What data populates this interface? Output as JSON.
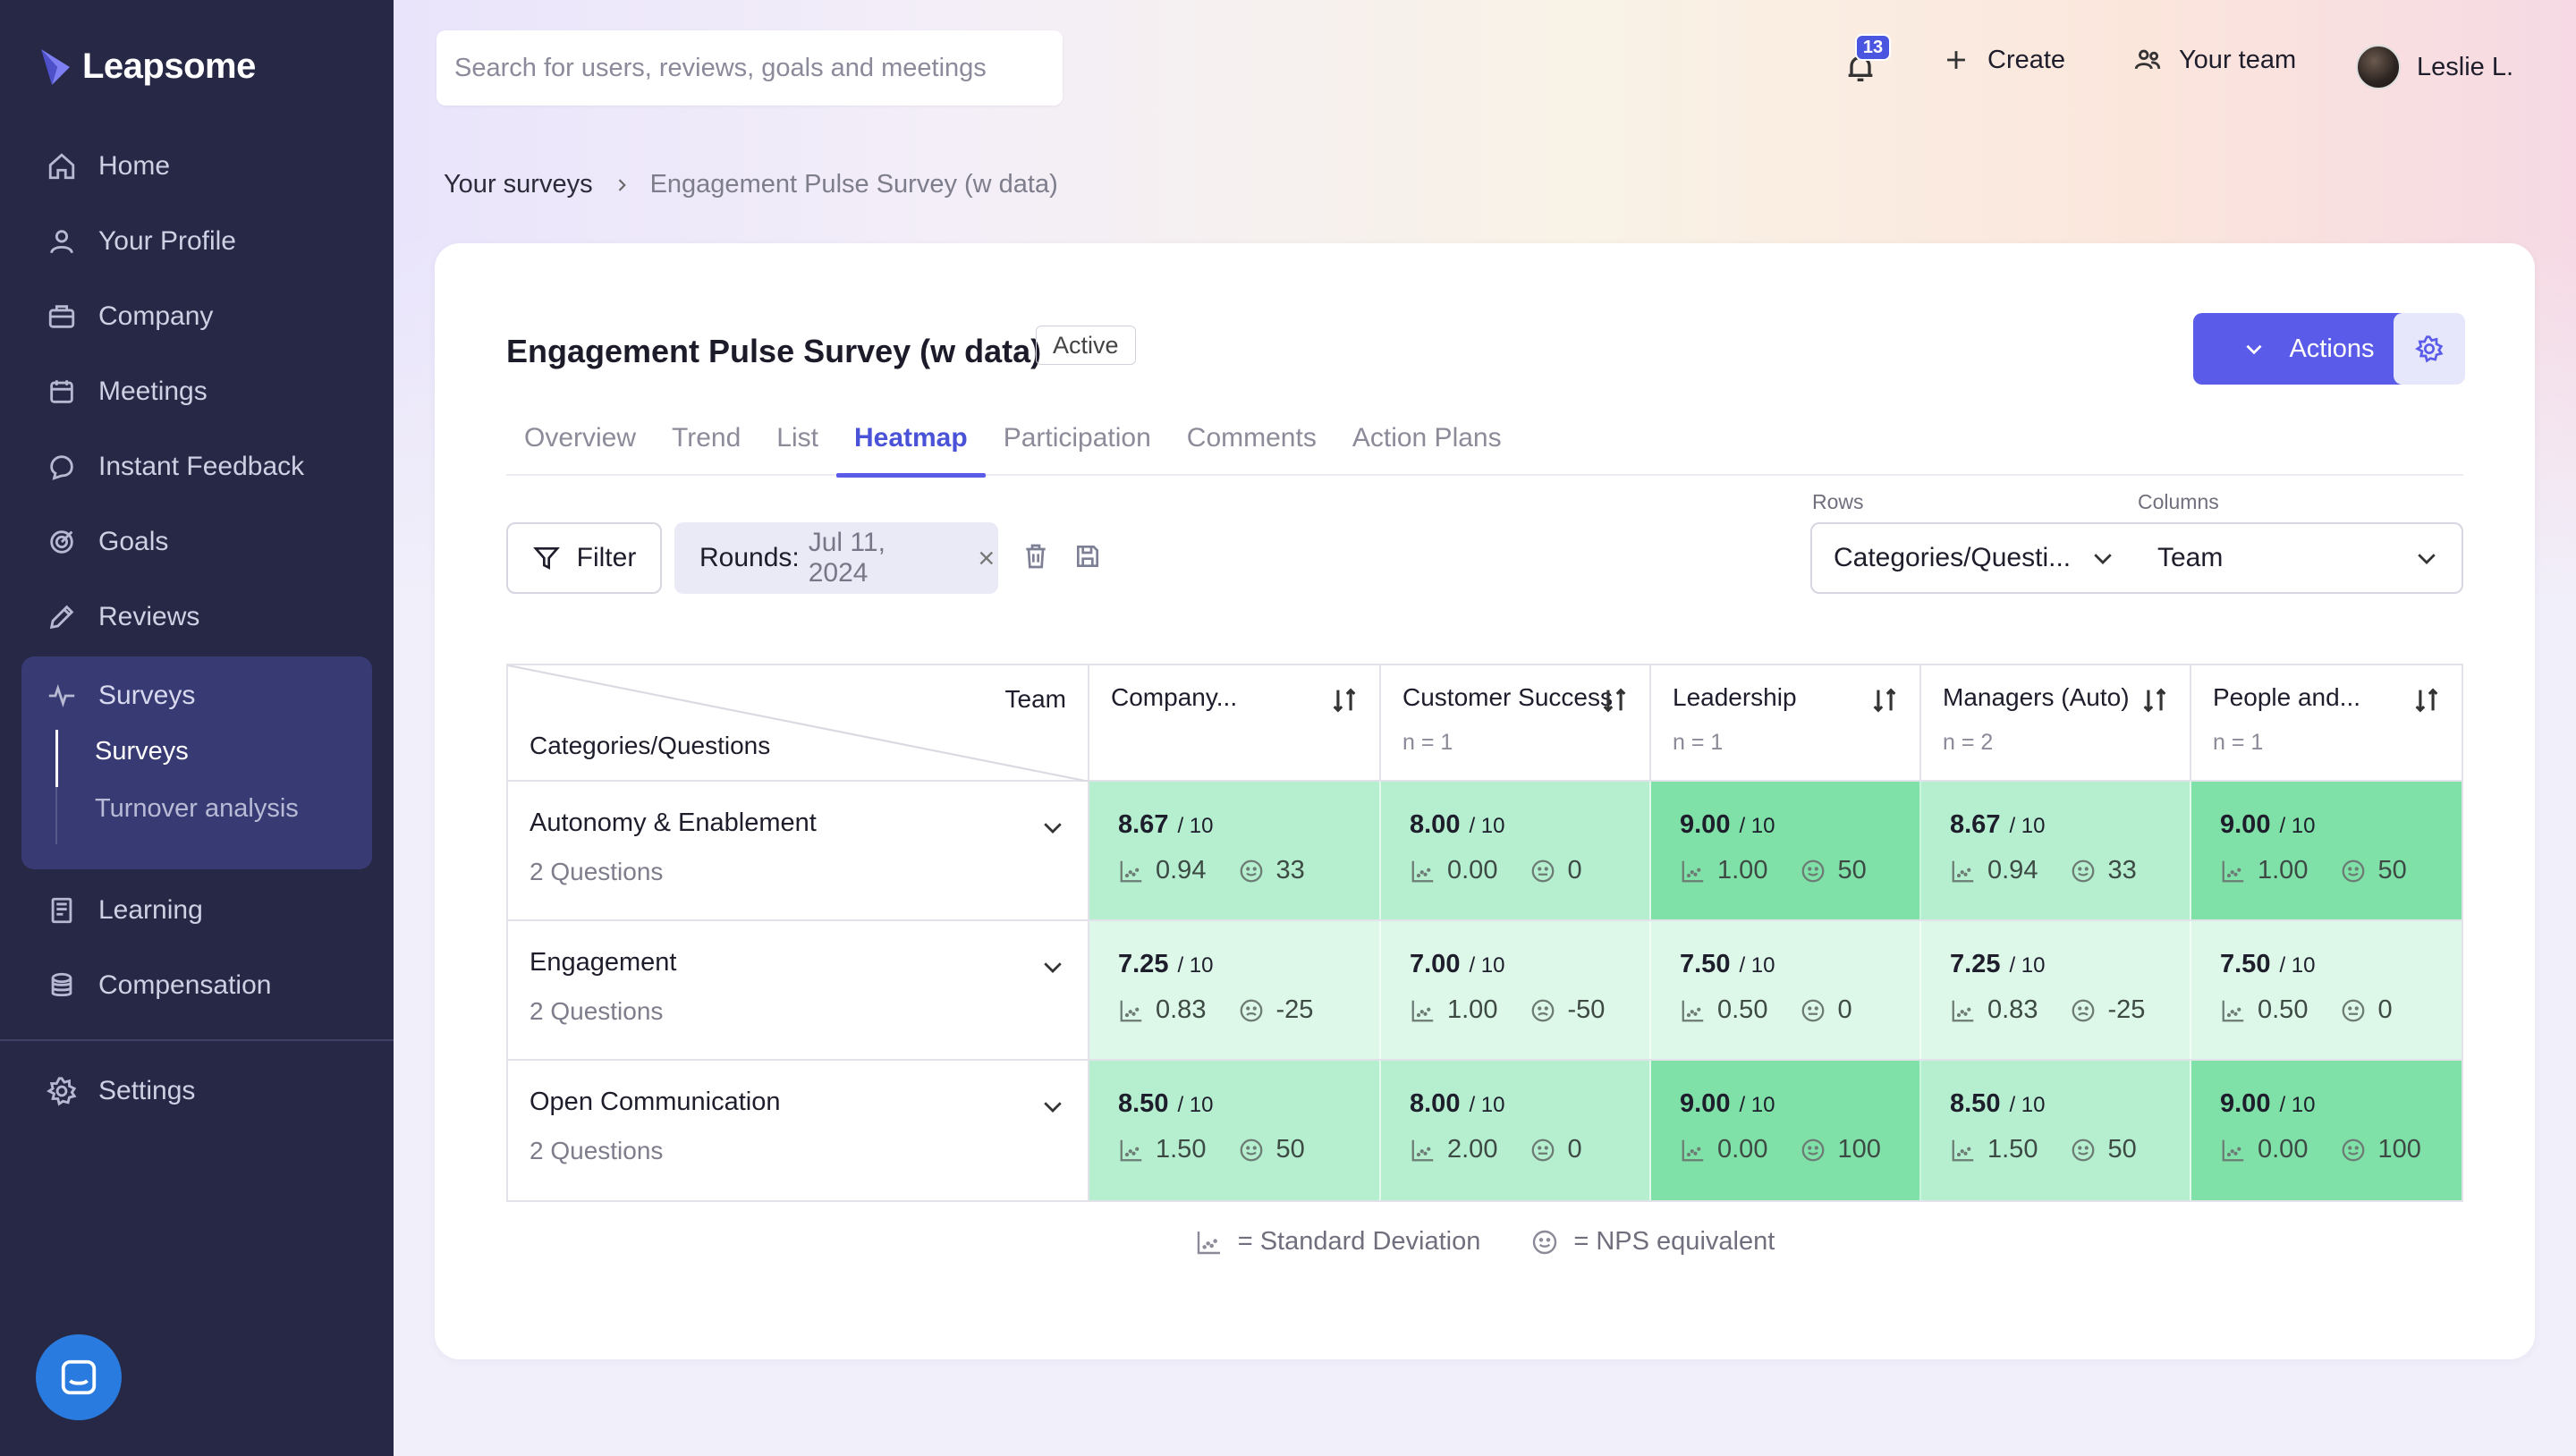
{
  "app": {
    "name": "Leapsome"
  },
  "sidebar": {
    "items": [
      {
        "label": "Home",
        "icon": "home-icon"
      },
      {
        "label": "Your Profile",
        "icon": "user-icon"
      },
      {
        "label": "Company",
        "icon": "briefcase-icon"
      },
      {
        "label": "Meetings",
        "icon": "calendar-icon"
      },
      {
        "label": "Instant Feedback",
        "icon": "chat-bubble-icon"
      },
      {
        "label": "Goals",
        "icon": "target-icon"
      },
      {
        "label": "Reviews",
        "icon": "pencil-icon"
      },
      {
        "label": "Surveys",
        "icon": "pulse-icon"
      },
      {
        "label": "Learning",
        "icon": "book-icon"
      },
      {
        "label": "Compensation",
        "icon": "coins-icon"
      },
      {
        "label": "Settings",
        "icon": "gear-icon"
      }
    ],
    "surveys_sub": [
      "Surveys",
      "Turnover analysis"
    ]
  },
  "topbar": {
    "search_placeholder": "Search for users, reviews, goals and meetings",
    "notification_count": "13",
    "create_label": "Create",
    "team_label": "Your team",
    "user_name": "Leslie L."
  },
  "breadcrumb": {
    "parent": "Your surveys",
    "current": "Engagement Pulse Survey (w data)"
  },
  "survey": {
    "title": "Engagement Pulse Survey (w data)",
    "status": "Active",
    "actions_label": "Actions",
    "tabs": [
      "Overview",
      "Trend",
      "List",
      "Heatmap",
      "Participation",
      "Comments",
      "Action Plans"
    ],
    "active_tab": "Heatmap"
  },
  "filters": {
    "filter_label": "Filter",
    "round_prefix": "Rounds:",
    "round_value": "Jul 11, 2024",
    "rows_label": "Rows",
    "rows_value": "Categories/Questi...",
    "columns_label": "Columns",
    "columns_value": "Team"
  },
  "heatmap": {
    "corner_col_label": "Team",
    "corner_row_label": "Categories/Questions",
    "denominator": "/ 10",
    "columns": [
      {
        "name": "Company...",
        "n": ""
      },
      {
        "name": "Customer Success",
        "n": "n = 1"
      },
      {
        "name": "Leadership",
        "n": "n = 1"
      },
      {
        "name": "Managers (Auto)",
        "n": "n = 2"
      },
      {
        "name": "People and...",
        "n": "n = 1"
      }
    ],
    "rows": [
      {
        "title": "Autonomy & Enablement",
        "sub": "2 Questions",
        "cells": [
          {
            "score": "8.67",
            "sd": "0.94",
            "nps": "33",
            "mood": "happy",
            "color": "#b6efd0"
          },
          {
            "score": "8.00",
            "sd": "0.00",
            "nps": "0",
            "mood": "neutral",
            "color": "#b6efd0"
          },
          {
            "score": "9.00",
            "sd": "1.00",
            "nps": "50",
            "mood": "happy",
            "color": "#7fe0a8"
          },
          {
            "score": "8.67",
            "sd": "0.94",
            "nps": "33",
            "mood": "happy",
            "color": "#b6efd0"
          },
          {
            "score": "9.00",
            "sd": "1.00",
            "nps": "50",
            "mood": "happy",
            "color": "#7fe0a8"
          }
        ]
      },
      {
        "title": "Engagement",
        "sub": "2 Questions",
        "cells": [
          {
            "score": "7.25",
            "sd": "0.83",
            "nps": "-25",
            "mood": "sad",
            "color": "#ddf7e8"
          },
          {
            "score": "7.00",
            "sd": "1.00",
            "nps": "-50",
            "mood": "sad",
            "color": "#ddf7e8"
          },
          {
            "score": "7.50",
            "sd": "0.50",
            "nps": "0",
            "mood": "neutral",
            "color": "#ddf7e8"
          },
          {
            "score": "7.25",
            "sd": "0.83",
            "nps": "-25",
            "mood": "sad",
            "color": "#ddf7e8"
          },
          {
            "score": "7.50",
            "sd": "0.50",
            "nps": "0",
            "mood": "neutral",
            "color": "#ddf7e8"
          }
        ]
      },
      {
        "title": "Open Communication",
        "sub": "2 Questions",
        "cells": [
          {
            "score": "8.50",
            "sd": "1.50",
            "nps": "50",
            "mood": "happy",
            "color": "#b6efd0"
          },
          {
            "score": "8.00",
            "sd": "2.00",
            "nps": "0",
            "mood": "neutral",
            "color": "#b6efd0"
          },
          {
            "score": "9.00",
            "sd": "0.00",
            "nps": "100",
            "mood": "happy",
            "color": "#7fe0a8"
          },
          {
            "score": "8.50",
            "sd": "1.50",
            "nps": "50",
            "mood": "happy",
            "color": "#b6efd0"
          },
          {
            "score": "9.00",
            "sd": "0.00",
            "nps": "100",
            "mood": "happy",
            "color": "#7fe0a8"
          }
        ]
      }
    ],
    "legend": {
      "sd_label": "= Standard Deviation",
      "nps_label": "= NPS equivalent"
    }
  },
  "colors": {
    "accent": "#5a5be8",
    "sidebar": "#262845",
    "sidebar_active": "#383b73"
  }
}
